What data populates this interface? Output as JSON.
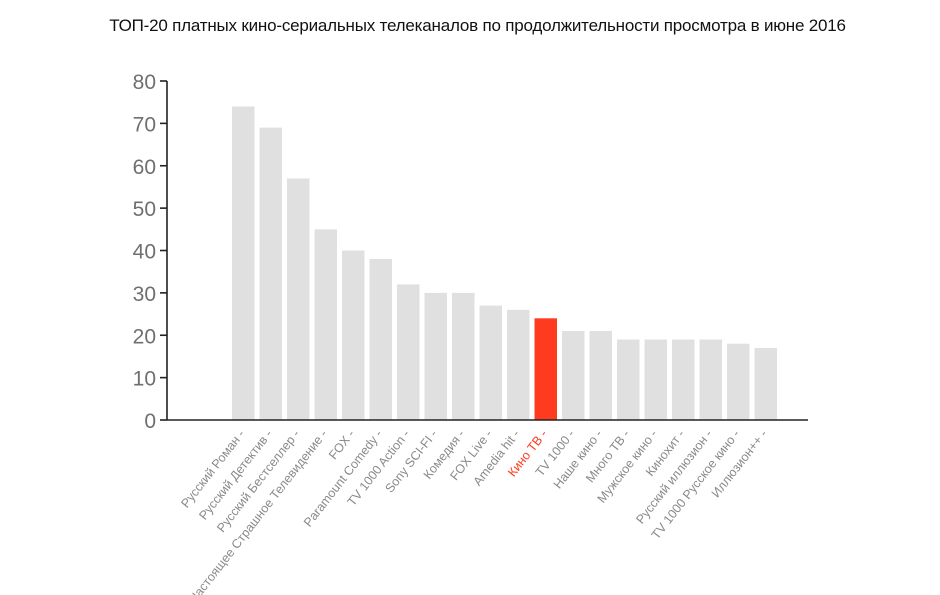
{
  "chart_data": {
    "type": "bar",
    "title": "ТОП-20 платных кино-сериальных телеканалов по продолжительности просмотра в июне 2016",
    "xlabel": "",
    "ylabel": "",
    "ylim": [
      0,
      80
    ],
    "yticks": [
      0,
      10,
      20,
      30,
      40,
      50,
      60,
      70,
      80
    ],
    "grid": false,
    "legend": "none",
    "categories": [
      "Русский Роман",
      "Русский Детектив",
      "Русский Бестселлер",
      "Настоящее Страшное Телевидение",
      "FOX",
      "Paramount Comedy",
      "TV 1000 Action",
      "Sony SCI-FI",
      "Комедия",
      "FOX Live",
      "Amedia hit",
      "Кино ТВ",
      "TV 1000",
      "Наше кино",
      "Много ТВ",
      "Мужское кино",
      "Кинохит",
      "Русский иллюзион",
      "TV 1000 Русское кино",
      "Иллюзион++"
    ],
    "values": [
      74,
      69,
      57,
      45,
      40,
      38,
      32,
      30,
      30,
      27,
      26,
      24,
      21,
      21,
      19,
      19,
      19,
      19,
      18,
      17
    ],
    "highlight_category": "Кино ТВ",
    "colors": {
      "bar": "#e0e0e0",
      "highlight": "#ff3b1f",
      "axis": "#222222",
      "tick_label": "#6f6f6f"
    }
  }
}
